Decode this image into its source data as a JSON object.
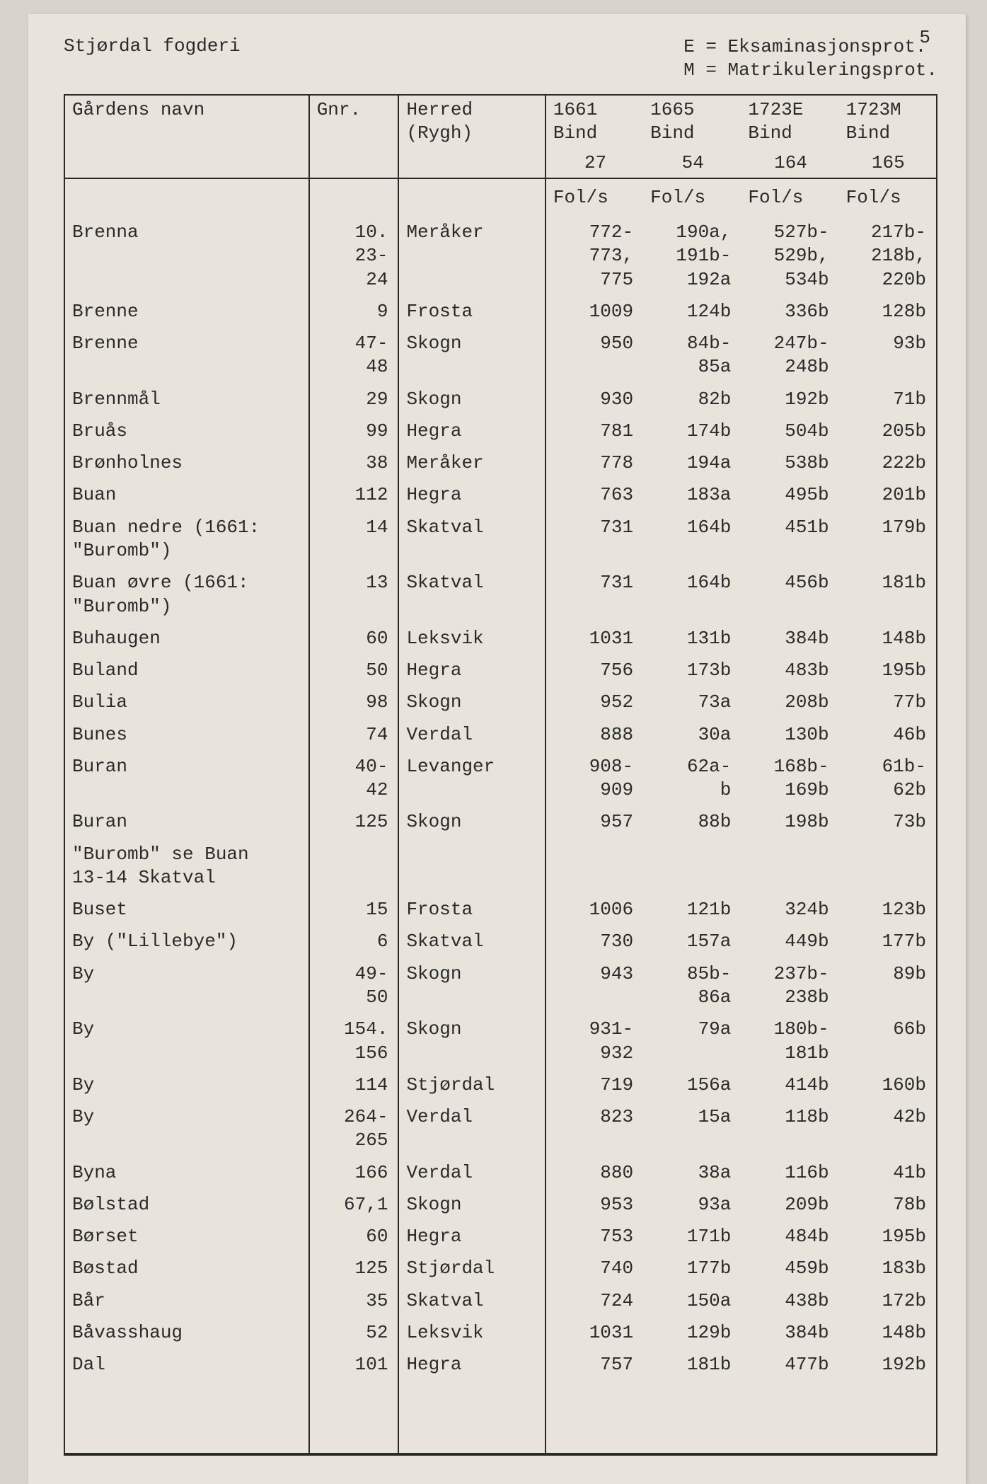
{
  "page_number": "5",
  "header_left": "Stjørdal fogderi",
  "header_right": "E = Eksaminasjonsprot.\nM = Matrikuleringsprot.",
  "columns": {
    "navn_label": "Gårdens\nnavn",
    "gnr_label": "Gnr.",
    "herred_label": "Herred\n(Rygh)",
    "y1661": "1661\nBind",
    "y1665": "1665\nBind",
    "y1723e": "1723E\nBind",
    "y1723m": "1723M\nBind",
    "bind_27": "27",
    "bind_54": "54",
    "bind_164": "164",
    "bind_165": "165",
    "fols": "Fol/s"
  },
  "rows": [
    {
      "navn": "Brenna",
      "gnr": "10.\n23-\n24",
      "herred": "Meråker",
      "b1": "772-\n773,\n775",
      "b2": "190a,\n191b-\n192a",
      "b3": "527b-\n529b,\n534b",
      "b4": "217b-\n218b,\n220b"
    },
    {
      "navn": "Brenne",
      "gnr": "9",
      "herred": "Frosta",
      "b1": "1009",
      "b2": "124b",
      "b3": "336b",
      "b4": "128b"
    },
    {
      "navn": "Brenne",
      "gnr": "47-\n48",
      "herred": "Skogn",
      "b1": "950",
      "b2": "84b-\n85a",
      "b3": "247b-\n248b",
      "b4": "93b"
    },
    {
      "navn": "Brennmål",
      "gnr": "29",
      "herred": "Skogn",
      "b1": "930",
      "b2": "82b",
      "b3": "192b",
      "b4": "71b"
    },
    {
      "navn": "Bruås",
      "gnr": "99",
      "herred": "Hegra",
      "b1": "781",
      "b2": "174b",
      "b3": "504b",
      "b4": "205b"
    },
    {
      "navn": "Brønholnes",
      "gnr": "38",
      "herred": "Meråker",
      "b1": "778",
      "b2": "194a",
      "b3": "538b",
      "b4": "222b"
    },
    {
      "navn": "Buan",
      "gnr": "112",
      "herred": "Hegra",
      "b1": "763",
      "b2": "183a",
      "b3": "495b",
      "b4": "201b"
    },
    {
      "navn": "Buan nedre (1661:\n\"Buromb\")",
      "gnr": "14",
      "herred": "Skatval",
      "b1": "731",
      "b2": "164b",
      "b3": "451b",
      "b4": "179b"
    },
    {
      "navn": "Buan øvre (1661:\n\"Buromb\")",
      "gnr": "13",
      "herred": "Skatval",
      "b1": "731",
      "b2": "164b",
      "b3": "456b",
      "b4": "181b"
    },
    {
      "navn": "Buhaugen",
      "gnr": "60",
      "herred": "Leksvik",
      "b1": "1031",
      "b2": "131b",
      "b3": "384b",
      "b4": "148b"
    },
    {
      "navn": "Buland",
      "gnr": "50",
      "herred": "Hegra",
      "b1": "756",
      "b2": "173b",
      "b3": "483b",
      "b4": "195b"
    },
    {
      "navn": "Bulia",
      "gnr": "98",
      "herred": "Skogn",
      "b1": "952",
      "b2": "73a",
      "b3": "208b",
      "b4": "77b"
    },
    {
      "navn": "Bunes",
      "gnr": "74",
      "herred": "Verdal",
      "b1": "888",
      "b2": "30a",
      "b3": "130b",
      "b4": "46b"
    },
    {
      "navn": "Buran",
      "gnr": "40-\n42",
      "herred": "Levanger",
      "b1": "908-\n909",
      "b2": "62a-\nb",
      "b3": "168b-\n169b",
      "b4": "61b-\n62b"
    },
    {
      "navn": "Buran",
      "gnr": "125",
      "herred": "Skogn",
      "b1": "957",
      "b2": "88b",
      "b3": "198b",
      "b4": "73b"
    },
    {
      "navn": "\"Buromb\" se Buan\n13-14 Skatval",
      "gnr": "",
      "herred": "",
      "b1": "",
      "b2": "",
      "b3": "",
      "b4": ""
    },
    {
      "navn": "Buset",
      "gnr": "15",
      "herred": "Frosta",
      "b1": "1006",
      "b2": "121b",
      "b3": "324b",
      "b4": "123b"
    },
    {
      "navn": "By (\"Lillebye\")",
      "gnr": "6",
      "herred": "Skatval",
      "b1": "730",
      "b2": "157a",
      "b3": "449b",
      "b4": "177b"
    },
    {
      "navn": "By",
      "gnr": "49-\n50",
      "herred": "Skogn",
      "b1": "943",
      "b2": "85b-\n86a",
      "b3": "237b-\n238b",
      "b4": "89b"
    },
    {
      "navn": "By",
      "gnr": "154.\n156",
      "herred": "Skogn",
      "b1": "931-\n932",
      "b2": "79a",
      "b3": "180b-\n181b",
      "b4": "66b"
    },
    {
      "navn": "By",
      "gnr": "114",
      "herred": "Stjørdal",
      "b1": "719",
      "b2": "156a",
      "b3": "414b",
      "b4": "160b"
    },
    {
      "navn": "By",
      "gnr": "264-\n265",
      "herred": "Verdal",
      "b1": "823",
      "b2": "15a",
      "b3": "118b",
      "b4": "42b"
    },
    {
      "navn": "Byna",
      "gnr": "166",
      "herred": "Verdal",
      "b1": "880",
      "b2": "38a",
      "b3": "116b",
      "b4": "41b"
    },
    {
      "navn": "Bølstad",
      "gnr": "67,1",
      "herred": "Skogn",
      "b1": "953",
      "b2": "93a",
      "b3": "209b",
      "b4": "78b"
    },
    {
      "navn": "Børset",
      "gnr": "60",
      "herred": "Hegra",
      "b1": "753",
      "b2": "171b",
      "b3": "484b",
      "b4": "195b"
    },
    {
      "navn": "Bøstad",
      "gnr": "125",
      "herred": "Stjørdal",
      "b1": "740",
      "b2": "177b",
      "b3": "459b",
      "b4": "183b"
    },
    {
      "navn": "Bår",
      "gnr": "35",
      "herred": "Skatval",
      "b1": "724",
      "b2": "150a",
      "b3": "438b",
      "b4": "172b"
    },
    {
      "navn": "Båvasshaug",
      "gnr": "52",
      "herred": "Leksvik",
      "b1": "1031",
      "b2": "129b",
      "b3": "384b",
      "b4": "148b"
    },
    {
      "navn": "Dal",
      "gnr": "101",
      "herred": "Hegra",
      "b1": "757",
      "b2": "181b",
      "b3": "477b",
      "b4": "192b"
    }
  ]
}
